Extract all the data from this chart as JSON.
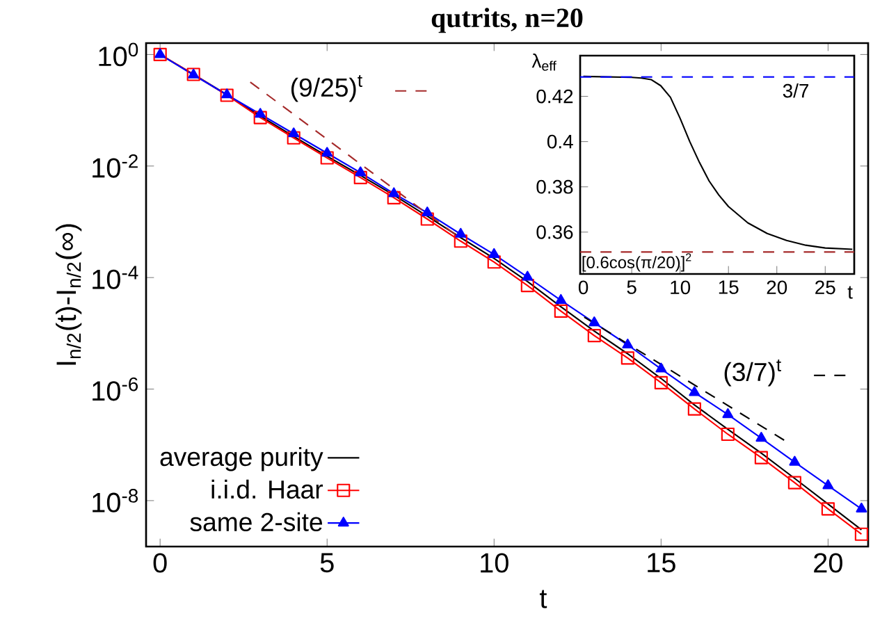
{
  "chart_data": [
    {
      "type": "line",
      "title": "qutrits, n=20",
      "xlabel": "t",
      "ylabel": "I$_{n/2}$(t)-I$_{n/2}$(∞)",
      "log": "y",
      "legend": "bottom left",
      "x": [
        0,
        1,
        2,
        3,
        4,
        5,
        6,
        7,
        8,
        9,
        10,
        11,
        12,
        13,
        14,
        15,
        16,
        17,
        18,
        19,
        20,
        21
      ],
      "xlim": [
        -0.42,
        21.2
      ],
      "xticks": [
        0,
        5,
        10,
        15,
        20
      ],
      "ylim": [
        1.5e-09,
        1.6
      ],
      "yticks": [
        {
          "value": 1,
          "label": "10$^{0}$"
        },
        {
          "value": 0.01,
          "label": "10$^{-2}$"
        },
        {
          "value": 0.0001,
          "label": "10$^{-4}$"
        },
        {
          "value": 1e-06,
          "label": "10$^{-6}$"
        },
        {
          "value": 1e-08,
          "label": "10$^{-8}$"
        }
      ],
      "series": [
        {
          "name": "average purity",
          "color": "#000000",
          "marker": "none",
          "line_style": "solid",
          "values": [
            1.0,
            0.44,
            0.19,
            0.079,
            0.034,
            0.015,
            0.0068,
            0.003,
            0.00126,
            0.00052,
            0.00022,
            8.5e-05,
            3e-05,
            1.1e-05,
            4.3e-06,
            1.55e-06,
            5.2e-07,
            1.9e-07,
            7.1e-08,
            2.5e-08,
            8.7e-09,
            3e-09
          ]
        },
        {
          "name": "i.i.d. Haar",
          "color": "#ff0000",
          "marker": "square",
          "line_style": "solid",
          "values": [
            1.0,
            0.44,
            0.186,
            0.074,
            0.032,
            0.014,
            0.0062,
            0.0027,
            0.00112,
            0.00045,
            0.00019,
            7.2e-05,
            2.5e-05,
            9.1e-06,
            3.6e-06,
            1.3e-06,
            4.4e-07,
            1.55e-07,
            5.9e-08,
            2.1e-08,
            7.1e-09,
            2.5e-09
          ]
        },
        {
          "name": "same 2-site",
          "color": "#0000ff",
          "marker": "triangle",
          "line_style": "solid",
          "values": [
            1.0,
            0.43,
            0.19,
            0.085,
            0.038,
            0.017,
            0.0076,
            0.0032,
            0.00145,
            0.0006,
            0.00026,
            0.000102,
            3.9e-05,
            1.55e-05,
            6.2e-06,
            2.3e-06,
            8.7e-07,
            3.5e-07,
            1.32e-07,
            4.9e-08,
            1.86e-08,
            7.1e-09
          ]
        },
        {
          "name": "(9/25)$^{t}$",
          "color": "#a52a2a",
          "marker": "none",
          "line_style": "dashed",
          "x": [
            2.7,
            9
          ],
          "values": [
            0.32,
            0.0005
          ]
        },
        {
          "name": "(3/7)$^{t}$",
          "color": "#000000",
          "marker": "none",
          "line_style": "dashed",
          "x": [
            12.7,
            18.8
          ],
          "values": [
            1.95e-05,
            1.1e-07
          ]
        }
      ]
    },
    {
      "type": "line",
      "xlabel": "t",
      "ylabel": "λ$_{eff}$",
      "x": [
        0,
        5,
        6,
        7,
        8,
        9,
        10,
        11,
        12,
        13,
        14,
        15,
        17,
        19,
        21,
        23,
        25,
        27.8
      ],
      "xlim": [
        -0.33,
        28
      ],
      "xticks": [
        0,
        5,
        10,
        15,
        20,
        25
      ],
      "ylim": [
        0.3415,
        0.438
      ],
      "yticks": [
        0.36,
        0.38,
        0.4,
        0.42
      ],
      "series": [
        {
          "color": "#000000",
          "values": [
            0.4288,
            0.4284,
            0.4281,
            0.4274,
            0.4247,
            0.4196,
            0.4103,
            0.4,
            0.3908,
            0.3826,
            0.3764,
            0.3713,
            0.3641,
            0.3594,
            0.3563,
            0.3542,
            0.353,
            0.3524
          ]
        }
      ],
      "annotations": [
        "3/7"
      ],
      "ref_lines": [
        {
          "axis": "y",
          "value": 0.428571,
          "color": "#0000ff",
          "line_style": "dashed"
        },
        {
          "axis": "y",
          "value": 0.3512,
          "label": "[0.6cos(π/20)]$^{2}$",
          "color": "#a52a2a",
          "line_style": "dashed"
        }
      ]
    }
  ]
}
